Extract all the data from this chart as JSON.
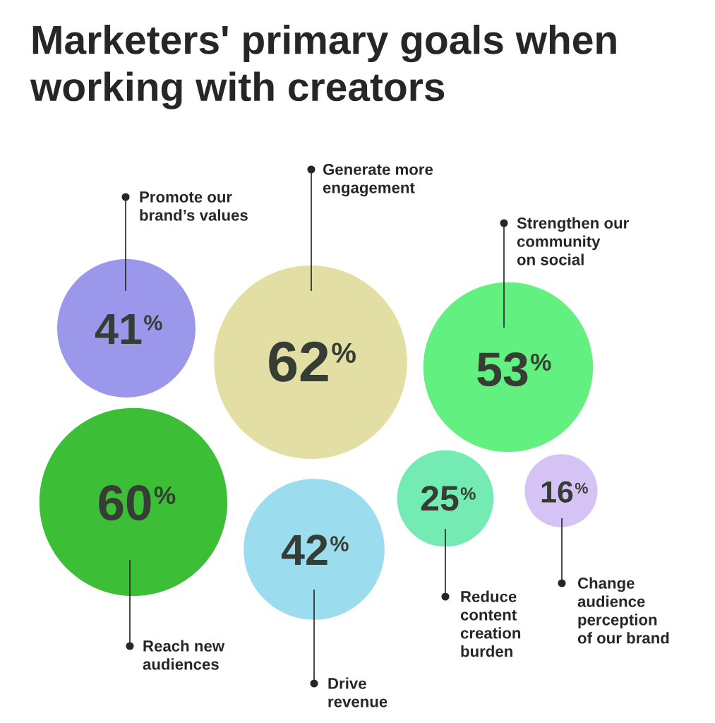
{
  "chart_data": {
    "type": "other",
    "title": "Marketers' primary goals when\nworking with creators",
    "categories": [
      "Promote our\nbrand’s values",
      "Generate more\nengagement",
      "Strengthen our\ncommunity\non social",
      "Reach new\naudiences",
      "Drive\nrevenue",
      "Reduce\ncontent\ncreation\nburden",
      "Change\naudience\nperception\nof our brand"
    ],
    "values": [
      41,
      62,
      53,
      60,
      42,
      25,
      16
    ],
    "value_labels": [
      "41%",
      "62%",
      "53%",
      "60%",
      "42%",
      "25%",
      "16%"
    ],
    "colors": [
      "#9b98ec",
      "#e3dfa4",
      "#62f080",
      "#3cbf37",
      "#9bdcee",
      "#74ebb3",
      "#d5c3f6"
    ]
  }
}
